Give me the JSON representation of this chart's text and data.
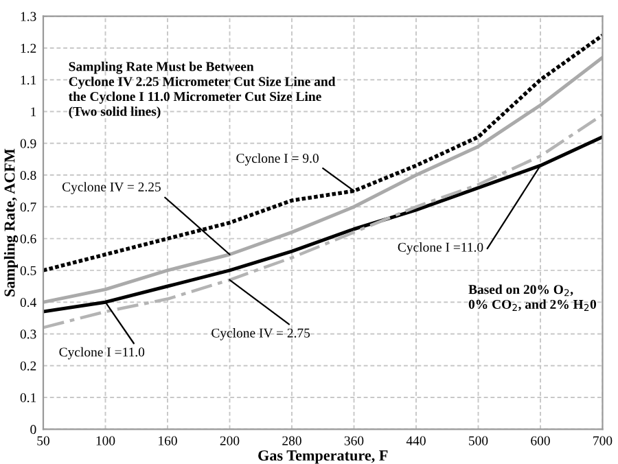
{
  "chart_data": {
    "type": "line",
    "xlabel": "Gas Temperature, F",
    "ylabel": "Sampling Rate, ACFM",
    "categories": [
      "50",
      "100",
      "160",
      "200",
      "280",
      "360",
      "440",
      "500",
      "600",
      "700"
    ],
    "series": [
      {
        "color": "#000000",
        "line_style": "dotted",
        "values": [
          0.5,
          0.55,
          0.6,
          0.65,
          0.72,
          0.75,
          0.83,
          0.92,
          1.1,
          1.24
        ]
      },
      {
        "color": "#aaaaaa",
        "line_style": "solid",
        "values": [
          0.4,
          0.44,
          0.5,
          0.55,
          0.62,
          0.7,
          0.8,
          0.89,
          1.02,
          1.17
        ]
      },
      {
        "color": "#000000",
        "line_style": "solid",
        "values": [
          0.37,
          0.4,
          0.45,
          0.5,
          0.56,
          0.63,
          0.69,
          0.76,
          0.83,
          0.92
        ]
      },
      {
        "color": "#b4b4b4",
        "line_style": "dashed",
        "values": [
          0.32,
          0.37,
          0.41,
          0.47,
          0.54,
          0.62,
          0.7,
          0.77,
          0.86,
          0.99
        ]
      }
    ],
    "ylim": [
      0,
      1.3
    ],
    "yticks": [
      0,
      0.1,
      0.2,
      0.3,
      0.4,
      0.5,
      0.6,
      0.7,
      0.8,
      0.9,
      1,
      1.1,
      1.2,
      1.3
    ],
    "grid": true,
    "marker": "none",
    "annotations": [
      {
        "text": "Cyclone I = 9.0",
        "x": "360",
        "y": 0.75
      },
      {
        "text": "Cyclone IV = 2.25",
        "x": "200",
        "y": 0.55
      },
      {
        "text": "Cyclone I =11.0",
        "x": "100",
        "y": 0.4
      },
      {
        "text": "Cyclone IV = 2.75",
        "x": "200",
        "y": 0.47
      },
      {
        "text": "Cyclone I =11.0",
        "x": "600",
        "y": 0.83
      },
      "Sampling Rate Must be Between\nCyclone IV 2.25 Micrometer Cut Size Line and\nthe Cyclone I 11.0 Micrometer Cut Size Line\n(Two solid lines)",
      "Based on 20% O$_{2}$,\n0% CO$_{2}$, and 2% H$_{2}$0"
    ]
  }
}
